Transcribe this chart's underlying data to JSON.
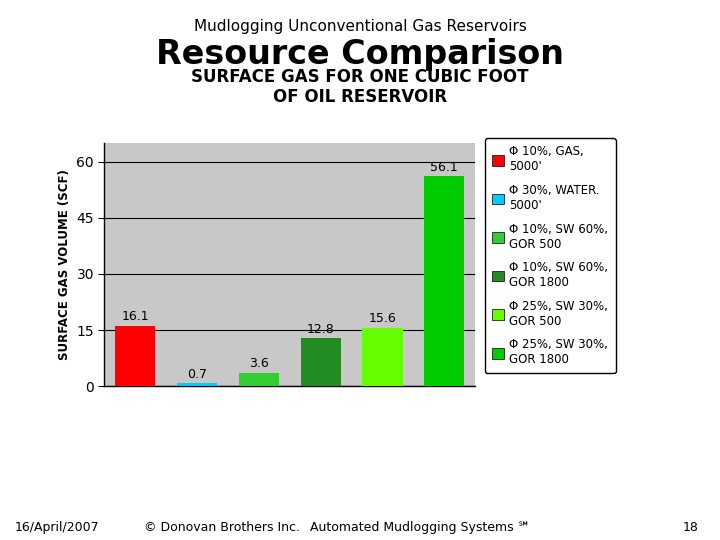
{
  "title_top": "Mudlogging Unconventional Gas Reservoirs",
  "title_main": "Resource Comparison",
  "title_sub": "SURFACE GAS FOR ONE CUBIC FOOT\nOF OIL RESERVOIR",
  "ylabel": "SURFACE GAS VOLUME (SCF)",
  "values": [
    16.1,
    0.7,
    3.6,
    12.8,
    15.6,
    56.1
  ],
  "bar_colors": [
    "#ff0000",
    "#00ccff",
    "#33cc33",
    "#228b22",
    "#66ff00",
    "#00cc00"
  ],
  "categories": [
    "Φ 10%, GAS, 5000'",
    "Φ 30%, WATER, 5000'",
    "Φ 10%, SW 60%, GOR 500",
    "Φ 10%, SW 60%, GOR 1800",
    "Φ 25%, SW 30%, GOR 500",
    "Φ 25%, SW 30%, GOR 1800"
  ],
  "ylim": [
    0,
    65
  ],
  "yticks": [
    0,
    15,
    30,
    45,
    60
  ],
  "legend_labels": [
    "Φ 10%, GAS,\n5000'",
    "Φ 30%, WATER.\n5000'",
    "Φ 10%, SW 60%,\nGOR 500",
    "Φ 10%, SW 60%,\nGOR 1800",
    "Φ 25%, SW 30%,\nGOR 500",
    "Φ 25%, SW 30%,\nGOR 1800"
  ],
  "legend_colors": [
    "#ff0000",
    "#00ccff",
    "#33cc33",
    "#228b22",
    "#66ff00",
    "#00cc00"
  ],
  "footer_left": "16/April/2007",
  "footer_center": "© Donovan Brothers Inc.",
  "footer_right": "Automated Mudlogging Systems ℠",
  "footer_page": "18",
  "bg_color": "#c8c8c8",
  "grid_color": "#000000"
}
